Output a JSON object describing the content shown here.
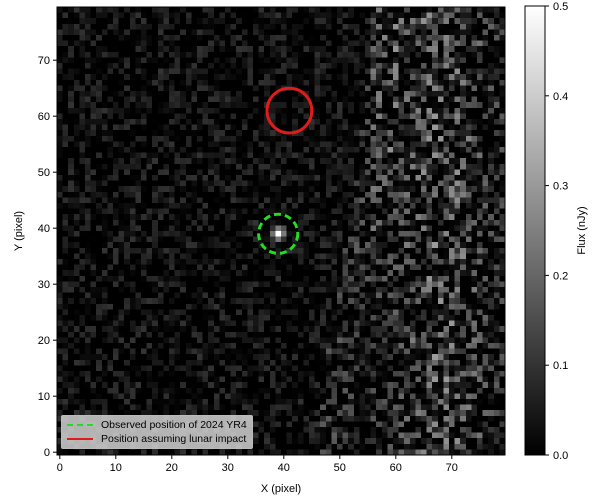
{
  "chart_data": {
    "type": "heatmap",
    "xlabel": "X (pixel)",
    "ylabel": "Y (pixel)",
    "xlim": [
      -0.5,
      79.5
    ],
    "ylim": [
      -0.5,
      79.5
    ],
    "xticks": [
      0,
      10,
      20,
      30,
      40,
      50,
      60,
      70
    ],
    "yticks": [
      0,
      10,
      20,
      30,
      40,
      50,
      60,
      70
    ],
    "colormap": "gray",
    "colorbar": {
      "label": "Flux (nJy)",
      "range": [
        0.0,
        0.5
      ],
      "ticks": [
        "0.0",
        "0.1",
        "0.2",
        "0.3",
        "0.4",
        "0.5"
      ]
    },
    "source": {
      "x": 39,
      "y": 39,
      "peak_flux": 0.5
    },
    "markers": [
      {
        "name": "Observed position of 2024 YR4",
        "x": 39,
        "y": 39,
        "radius": 3.5,
        "color": "#22dd22",
        "style": "dashed"
      },
      {
        "name": "Position assuming lunar impact",
        "x": 41,
        "y": 61,
        "radius": 4,
        "color": "#e01b1b",
        "style": "solid"
      }
    ],
    "legend_placement": "lower-left"
  }
}
